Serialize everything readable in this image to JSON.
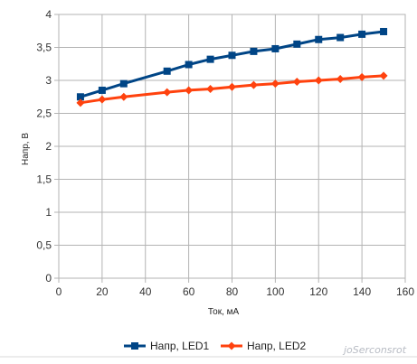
{
  "chart_data": {
    "type": "line",
    "xlabel": "Ток, мА",
    "ylabel": "Напр, В",
    "xlim": [
      0,
      160
    ],
    "ylim": [
      0,
      4
    ],
    "x_ticks": [
      "0",
      "20",
      "40",
      "60",
      "80",
      "100",
      "120",
      "140",
      "160"
    ],
    "y_ticks": [
      "0",
      "0,5",
      "1",
      "1,5",
      "2",
      "2,5",
      "3",
      "3,5",
      "4"
    ],
    "grid": true,
    "legend_position": "bottom",
    "series": [
      {
        "name": "Напр, LED1",
        "color": "#004586",
        "marker": "square",
        "x": [
          10,
          20,
          30,
          50,
          60,
          70,
          80,
          90,
          100,
          110,
          120,
          130,
          140,
          150
        ],
        "y": [
          2.75,
          2.85,
          2.95,
          3.14,
          3.24,
          3.32,
          3.38,
          3.44,
          3.48,
          3.55,
          3.62,
          3.65,
          3.7,
          3.74
        ]
      },
      {
        "name": "Напр, LED2",
        "color": "#ff420e",
        "marker": "diamond",
        "x": [
          10,
          20,
          30,
          50,
          60,
          70,
          80,
          90,
          100,
          110,
          120,
          130,
          140,
          150
        ],
        "y": [
          2.66,
          2.71,
          2.75,
          2.82,
          2.85,
          2.87,
          2.9,
          2.93,
          2.95,
          2.98,
          3.0,
          3.02,
          3.05,
          3.07
        ]
      }
    ]
  },
  "watermark": "joSerconsrot"
}
